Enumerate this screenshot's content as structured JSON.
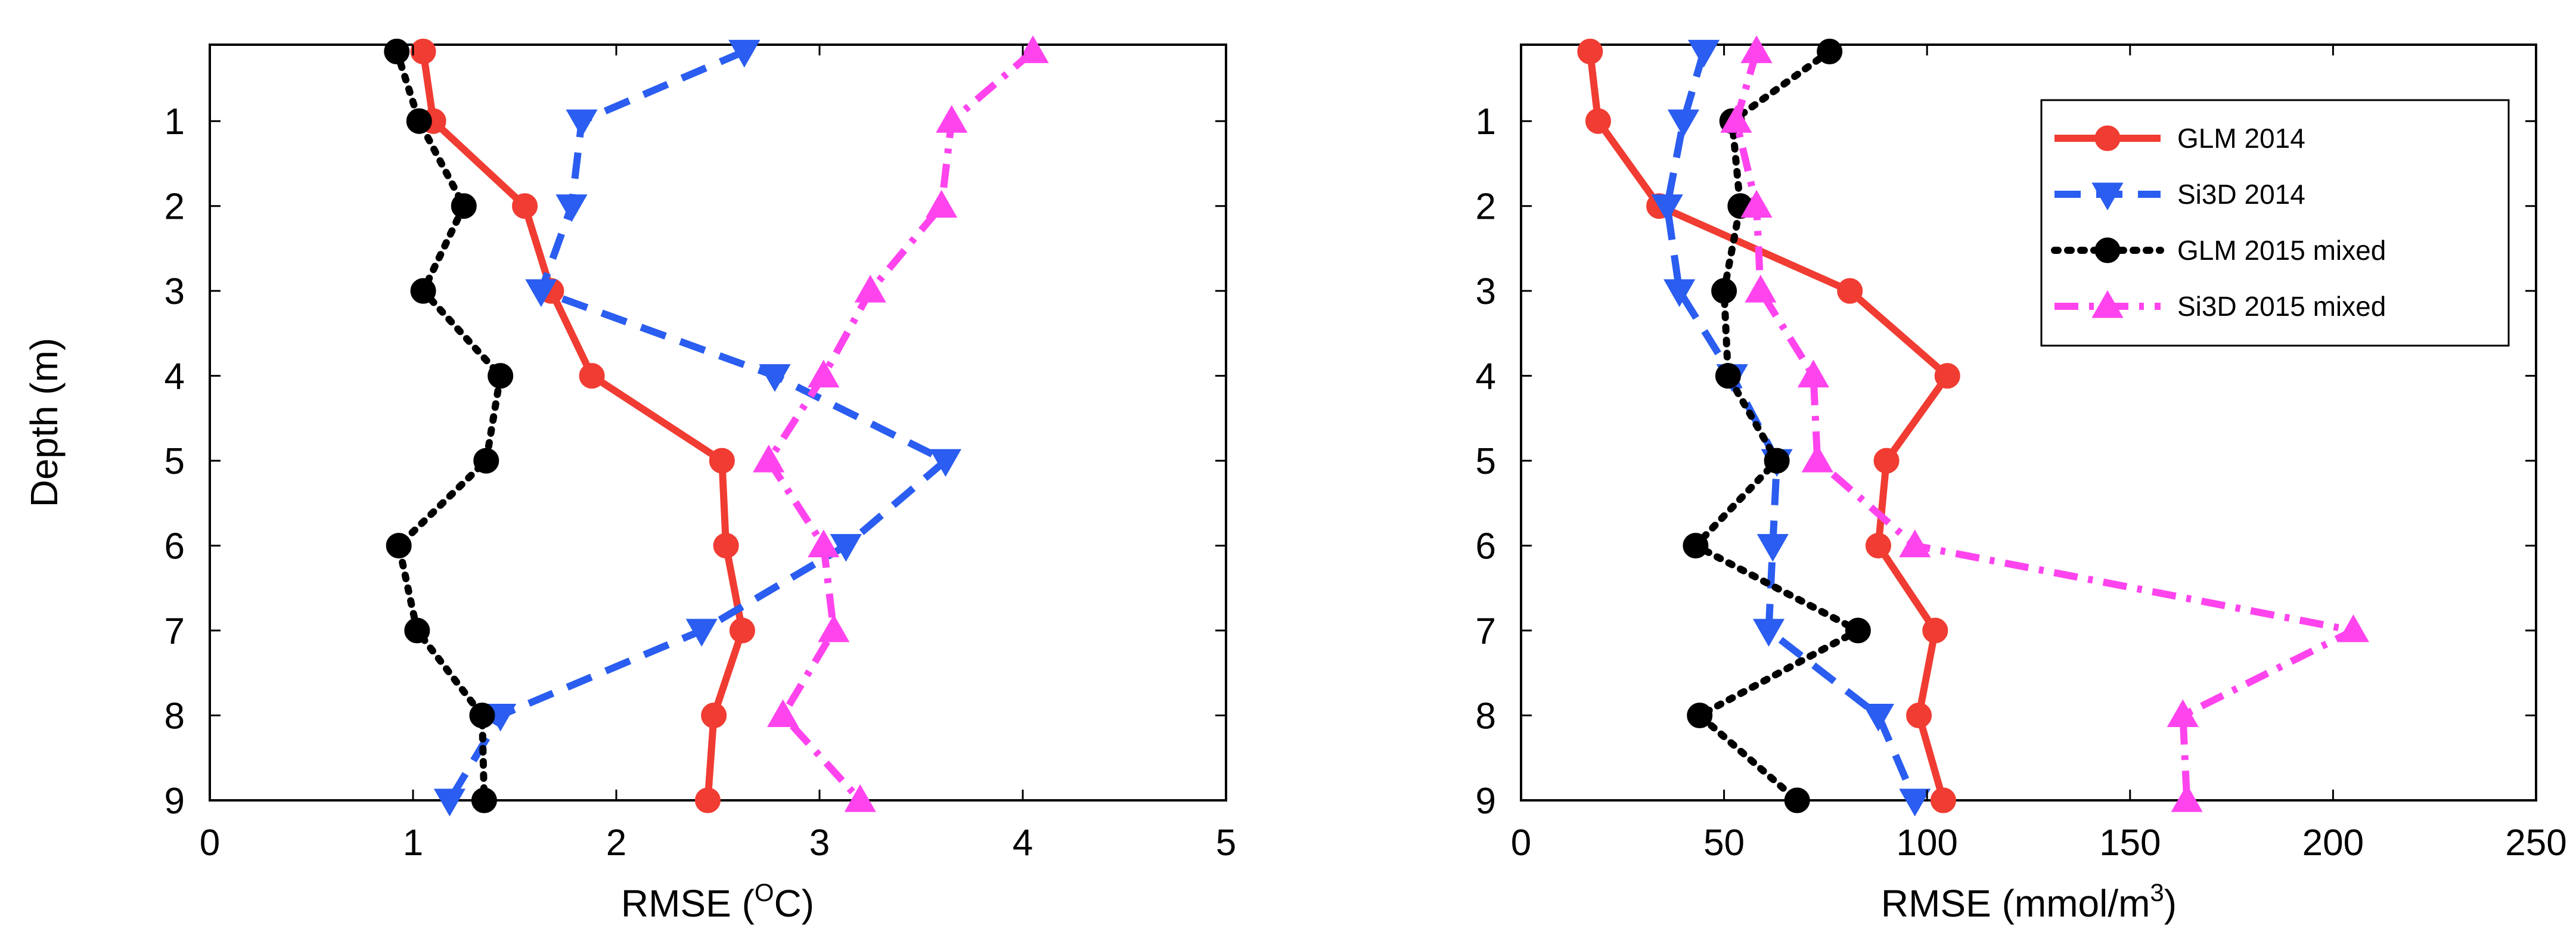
{
  "chart_data": [
    {
      "type": "line",
      "xlabel": "RMSE (",
      "xlabel_sup": "O",
      "xlabel_suffix": "C)",
      "ylabel": "Depth (m)",
      "xlim": [
        0,
        5
      ],
      "ylim": [
        9,
        0.1
      ],
      "y_reversed": true,
      "xticks": [
        "0",
        "1",
        "2",
        "3",
        "4",
        "5"
      ],
      "yticks": [
        "1",
        "2",
        "3",
        "4",
        "5",
        "6",
        "7",
        "8",
        "9"
      ],
      "grid": false,
      "legend": null,
      "series": [
        {
          "name": "GLM 2014",
          "color": "#f03c32",
          "marker": "circle",
          "line": "solid",
          "points": [
            [
              1.05,
              0.18
            ],
            [
              1.1,
              1.0
            ],
            [
              1.55,
              2.0
            ],
            [
              1.68,
              3.0
            ],
            [
              1.88,
              4.0
            ],
            [
              2.52,
              5.0
            ],
            [
              2.54,
              6.0
            ],
            [
              2.62,
              7.0
            ],
            [
              2.48,
              8.0
            ],
            [
              2.45,
              9.0
            ]
          ]
        },
        {
          "name": "Si3D 2014",
          "color": "#2a5df0",
          "marker": "triangle-down",
          "line": "dashed",
          "points": [
            [
              2.63,
              0.18
            ],
            [
              1.83,
              1.0
            ],
            [
              1.78,
              2.0
            ],
            [
              1.63,
              3.0
            ],
            [
              2.78,
              4.0
            ],
            [
              3.62,
              5.0
            ],
            [
              3.13,
              6.0
            ],
            [
              2.42,
              7.0
            ],
            [
              1.43,
              8.0
            ],
            [
              1.18,
              9.0
            ]
          ]
        },
        {
          "name": "GLM 2015 mixed",
          "color": "#000000",
          "marker": "circle",
          "line": "dotted",
          "points": [
            [
              0.92,
              0.18
            ],
            [
              1.03,
              1.0
            ],
            [
              1.25,
              2.0
            ],
            [
              1.05,
              3.0
            ],
            [
              1.43,
              4.0
            ],
            [
              1.36,
              5.0
            ],
            [
              0.93,
              6.0
            ],
            [
              1.02,
              7.0
            ],
            [
              1.34,
              8.0
            ],
            [
              1.35,
              9.0
            ]
          ]
        },
        {
          "name": "Si3D 2015 mixed",
          "color": "#ff44ee",
          "marker": "triangle-up",
          "line": "dashdot",
          "points": [
            [
              4.05,
              0.18
            ],
            [
              3.65,
              1.0
            ],
            [
              3.6,
              2.0
            ],
            [
              3.25,
              3.0
            ],
            [
              3.02,
              4.0
            ],
            [
              2.75,
              5.0
            ],
            [
              3.02,
              6.0
            ],
            [
              3.07,
              7.0
            ],
            [
              2.82,
              8.0
            ],
            [
              3.2,
              9.0
            ]
          ]
        }
      ]
    },
    {
      "type": "line",
      "xlabel": "RMSE (mmol/m",
      "xlabel_sup": "3",
      "xlabel_suffix": ")",
      "ylabel": "",
      "xlim": [
        0,
        250
      ],
      "ylim": [
        9,
        0.1
      ],
      "y_reversed": true,
      "xticks": [
        "0",
        "50",
        "100",
        "150",
        "200",
        "250"
      ],
      "yticks": [
        "1",
        "2",
        "3",
        "4",
        "5",
        "6",
        "7",
        "8",
        "9"
      ],
      "grid": false,
      "legend": "top-right",
      "series": [
        {
          "name": "GLM 2014",
          "color": "#f03c32",
          "marker": "circle",
          "line": "solid",
          "points": [
            [
              17,
              0.18
            ],
            [
              19,
              1.0
            ],
            [
              34,
              2.0
            ],
            [
              81,
              3.0
            ],
            [
              105,
              4.0
            ],
            [
              90,
              5.0
            ],
            [
              88,
              6.0
            ],
            [
              102,
              7.0
            ],
            [
              98,
              8.0
            ],
            [
              104,
              9.0
            ]
          ]
        },
        {
          "name": "Si3D 2014",
          "color": "#2a5df0",
          "marker": "triangle-down",
          "line": "dashed",
          "points": [
            [
              45,
              0.18
            ],
            [
              40,
              1.0
            ],
            [
              36,
              2.0
            ],
            [
              39,
              3.0
            ],
            [
              52,
              4.0
            ],
            [
              63,
              5.0
            ],
            [
              62,
              6.0
            ],
            [
              61,
              7.0
            ],
            [
              88,
              8.0
            ],
            [
              97,
              9.0
            ]
          ]
        },
        {
          "name": "GLM 2015 mixed",
          "color": "#000000",
          "marker": "circle",
          "line": "dotted",
          "points": [
            [
              76,
              0.18
            ],
            [
              52,
              1.0
            ],
            [
              54,
              2.0
            ],
            [
              50,
              3.0
            ],
            [
              51,
              4.0
            ],
            [
              63,
              5.0
            ],
            [
              43,
              6.0
            ],
            [
              83,
              7.0
            ],
            [
              44,
              8.0
            ],
            [
              68,
              9.0
            ]
          ]
        },
        {
          "name": "Si3D 2015 mixed",
          "color": "#ff44ee",
          "marker": "triangle-up",
          "line": "dashdot",
          "points": [
            [
              58,
              0.18
            ],
            [
              53,
              1.0
            ],
            [
              58,
              2.0
            ],
            [
              59,
              3.0
            ],
            [
              72,
              4.0
            ],
            [
              73,
              5.0
            ],
            [
              97,
              6.0
            ],
            [
              205,
              7.0
            ],
            [
              163,
              8.0
            ],
            [
              164,
              9.0
            ]
          ]
        }
      ]
    }
  ]
}
